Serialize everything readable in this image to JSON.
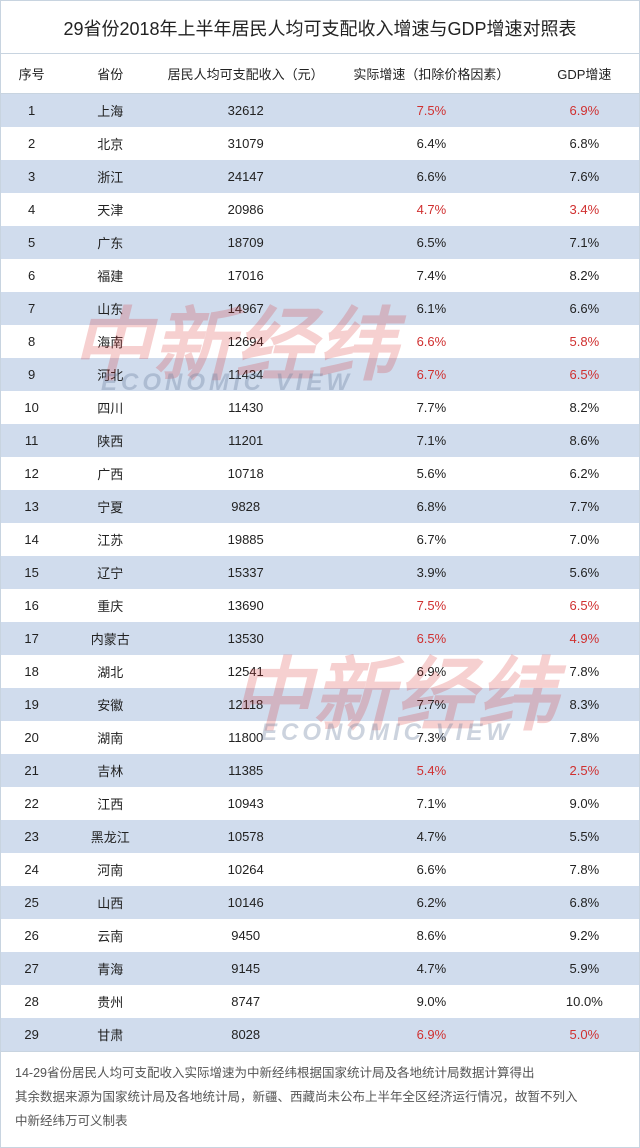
{
  "title": "29省份2018年上半年居民人均可支配收入增速与GDP增速对照表",
  "columns": [
    "序号",
    "省份",
    "居民人均可支配收入（元）",
    "实际增速（扣除价格因素）",
    "GDP增速"
  ],
  "watermark_cn": "中新经纬",
  "watermark_en": "ECONOMIC VIEW",
  "highlight_color": "#d03030",
  "header_bg": "#ffffff",
  "row_odd_bg": "#d0dced",
  "row_even_bg": "#ffffff",
  "border_color": "#c8d4e0",
  "rows": [
    {
      "idx": "1",
      "prov": "上海",
      "income": "32612",
      "real": "7.5%",
      "gdp": "6.9%",
      "hl": true
    },
    {
      "idx": "2",
      "prov": "北京",
      "income": "31079",
      "real": "6.4%",
      "gdp": "6.8%",
      "hl": false
    },
    {
      "idx": "3",
      "prov": "浙江",
      "income": "24147",
      "real": "6.6%",
      "gdp": "7.6%",
      "hl": false
    },
    {
      "idx": "4",
      "prov": "天津",
      "income": "20986",
      "real": "4.7%",
      "gdp": "3.4%",
      "hl": true
    },
    {
      "idx": "5",
      "prov": "广东",
      "income": "18709",
      "real": "6.5%",
      "gdp": "7.1%",
      "hl": false
    },
    {
      "idx": "6",
      "prov": "福建",
      "income": "17016",
      "real": "7.4%",
      "gdp": "8.2%",
      "hl": false
    },
    {
      "idx": "7",
      "prov": "山东",
      "income": "14967",
      "real": "6.1%",
      "gdp": "6.6%",
      "hl": false
    },
    {
      "idx": "8",
      "prov": "海南",
      "income": "12694",
      "real": "6.6%",
      "gdp": "5.8%",
      "hl": true
    },
    {
      "idx": "9",
      "prov": "河北",
      "income": "11434",
      "real": "6.7%",
      "gdp": "6.5%",
      "hl": true
    },
    {
      "idx": "10",
      "prov": "四川",
      "income": "11430",
      "real": "7.7%",
      "gdp": "8.2%",
      "hl": false
    },
    {
      "idx": "11",
      "prov": "陕西",
      "income": "11201",
      "real": "7.1%",
      "gdp": "8.6%",
      "hl": false
    },
    {
      "idx": "12",
      "prov": "广西",
      "income": "10718",
      "real": "5.6%",
      "gdp": "6.2%",
      "hl": false
    },
    {
      "idx": "13",
      "prov": "宁夏",
      "income": "9828",
      "real": "6.8%",
      "gdp": "7.7%",
      "hl": false
    },
    {
      "idx": "14",
      "prov": "江苏",
      "income": "19885",
      "real": "6.7%",
      "gdp": "7.0%",
      "hl": false
    },
    {
      "idx": "15",
      "prov": "辽宁",
      "income": "15337",
      "real": "3.9%",
      "gdp": "5.6%",
      "hl": false
    },
    {
      "idx": "16",
      "prov": "重庆",
      "income": "13690",
      "real": "7.5%",
      "gdp": "6.5%",
      "hl": true
    },
    {
      "idx": "17",
      "prov": "内蒙古",
      "income": "13530",
      "real": "6.5%",
      "gdp": "4.9%",
      "hl": true
    },
    {
      "idx": "18",
      "prov": "湖北",
      "income": "12541",
      "real": "6.9%",
      "gdp": "7.8%",
      "hl": false
    },
    {
      "idx": "19",
      "prov": "安徽",
      "income": "12118",
      "real": "7.7%",
      "gdp": "8.3%",
      "hl": false
    },
    {
      "idx": "20",
      "prov": "湖南",
      "income": "11800",
      "real": "7.3%",
      "gdp": "7.8%",
      "hl": false
    },
    {
      "idx": "21",
      "prov": "吉林",
      "income": "11385",
      "real": "5.4%",
      "gdp": "2.5%",
      "hl": true
    },
    {
      "idx": "22",
      "prov": "江西",
      "income": "10943",
      "real": "7.1%",
      "gdp": "9.0%",
      "hl": false
    },
    {
      "idx": "23",
      "prov": "黑龙江",
      "income": "10578",
      "real": "4.7%",
      "gdp": "5.5%",
      "hl": false
    },
    {
      "idx": "24",
      "prov": "河南",
      "income": "10264",
      "real": "6.6%",
      "gdp": "7.8%",
      "hl": false
    },
    {
      "idx": "25",
      "prov": "山西",
      "income": "10146",
      "real": "6.2%",
      "gdp": "6.8%",
      "hl": false
    },
    {
      "idx": "26",
      "prov": "云南",
      "income": "9450",
      "real": "8.6%",
      "gdp": "9.2%",
      "hl": false
    },
    {
      "idx": "27",
      "prov": "青海",
      "income": "9145",
      "real": "4.7%",
      "gdp": "5.9%",
      "hl": false
    },
    {
      "idx": "28",
      "prov": "贵州",
      "income": "8747",
      "real": "9.0%",
      "gdp": "10.0%",
      "hl": false
    },
    {
      "idx": "29",
      "prov": "甘肃",
      "income": "8028",
      "real": "6.9%",
      "gdp": "5.0%",
      "hl": true
    }
  ],
  "footer_lines": [
    "14-29省份居民人均可支配收入实际增速为中新经纬根据国家统计局及各地统计局数据计算得出",
    "其余数据来源为国家统计局及各地统计局，新疆、西藏尚未公布上半年全区经济运行情况，故暂不列入",
    "中新经纬万可义制表"
  ]
}
